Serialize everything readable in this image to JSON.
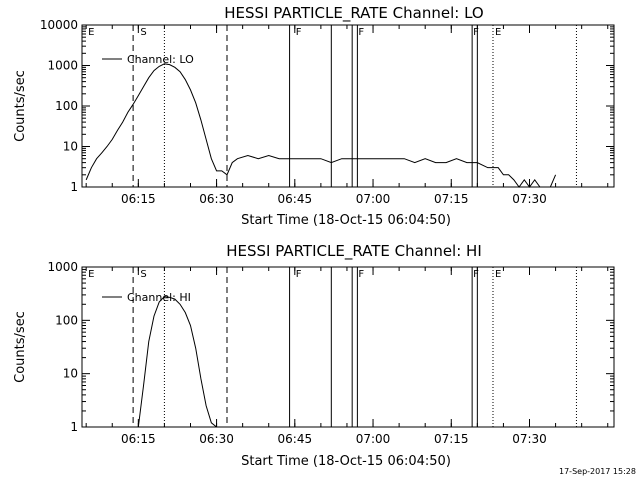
{
  "footer_timestamp": "17-Sep-2017 15:28",
  "chart_data": [
    {
      "type": "line",
      "title": "HESSI PARTICLE_RATE Channel: LO",
      "xlabel": "Start Time (18-Oct-15 06:04:50)",
      "ylabel": "Counts/sec",
      "yscale": "log",
      "ylim": [
        1,
        10000
      ],
      "xlim_minutes": [
        6.07,
        7.77
      ],
      "xticks": [
        "06:15",
        "06:30",
        "06:45",
        "07:00",
        "07:15",
        "07:30"
      ],
      "yticks": [
        "1",
        "10",
        "100",
        "1000",
        "10000"
      ],
      "legend": "Channel: LO",
      "legend_position": "top-left",
      "markers": [
        {
          "label": "E",
          "time": "06:05"
        },
        {
          "label": "S",
          "time": "06:15"
        },
        {
          "label": "F",
          "time": "06:45"
        },
        {
          "label": "F",
          "time": "06:57"
        },
        {
          "label": "F",
          "time": "07:19"
        },
        {
          "label": "E",
          "time": "07:23"
        }
      ],
      "series": [
        {
          "name": "Channel: LO",
          "x": [
            "06:05",
            "06:06",
            "06:07",
            "06:08",
            "06:09",
            "06:10",
            "06:11",
            "06:12",
            "06:13",
            "06:14",
            "06:15",
            "06:16",
            "06:17",
            "06:18",
            "06:19",
            "06:20",
            "06:21",
            "06:22",
            "06:23",
            "06:24",
            "06:25",
            "06:26",
            "06:27",
            "06:28",
            "06:29",
            "06:30",
            "06:31",
            "06:32",
            "06:33",
            "06:34",
            "06:36",
            "06:38",
            "06:40",
            "06:42",
            "06:44",
            "06:46",
            "06:48",
            "06:50",
            "06:52",
            "06:54",
            "06:56",
            "06:58",
            "07:00",
            "07:02",
            "07:04",
            "07:06",
            "07:08",
            "07:10",
            "07:12",
            "07:14",
            "07:16",
            "07:18",
            "07:20",
            "07:22",
            "07:24",
            "07:25",
            "07:26",
            "07:27",
            "07:28",
            "07:29",
            "07:30",
            "07:31",
            "07:32",
            "07:33",
            "07:34",
            "07:35"
          ],
          "values": [
            1.5,
            3,
            5,
            7,
            10,
            15,
            25,
            40,
            70,
            110,
            180,
            300,
            500,
            750,
            950,
            1100,
            1050,
            900,
            700,
            450,
            250,
            120,
            45,
            15,
            5,
            2.5,
            2.5,
            2,
            4,
            5,
            6,
            5,
            6,
            5,
            5,
            5,
            5,
            5,
            4,
            5,
            5,
            5,
            5,
            5,
            5,
            5,
            4,
            5,
            4,
            4,
            5,
            4,
            4,
            3,
            3,
            2,
            2,
            1.5,
            1,
            1.5,
            1,
            1.5,
            1,
            1,
            1,
            2
          ]
        }
      ]
    },
    {
      "type": "line",
      "title": "HESSI PARTICLE_RATE Channel: HI",
      "xlabel": "Start Time (18-Oct-15 06:04:50)",
      "ylabel": "Counts/sec",
      "yscale": "log",
      "ylim": [
        1,
        1000
      ],
      "xlim_minutes": [
        6.07,
        7.77
      ],
      "xticks": [
        "06:15",
        "06:30",
        "06:45",
        "07:00",
        "07:15",
        "07:30"
      ],
      "yticks": [
        "1",
        "10",
        "100",
        "1000"
      ],
      "legend": "Channel: HI",
      "legend_position": "top-left",
      "markers": [
        {
          "label": "E",
          "time": "06:05"
        },
        {
          "label": "S",
          "time": "06:15"
        },
        {
          "label": "F",
          "time": "06:45"
        },
        {
          "label": "F",
          "time": "06:57"
        },
        {
          "label": "F",
          "time": "07:19"
        },
        {
          "label": "E",
          "time": "07:23"
        }
      ],
      "series": [
        {
          "name": "Channel: HI",
          "x": [
            "06:15",
            "06:16",
            "06:17",
            "06:18",
            "06:19",
            "06:20",
            "06:21",
            "06:22",
            "06:23",
            "06:24",
            "06:25",
            "06:26",
            "06:27",
            "06:28",
            "06:29",
            "06:30"
          ],
          "values": [
            1,
            6,
            40,
            120,
            220,
            280,
            270,
            250,
            200,
            140,
            80,
            30,
            8,
            2.5,
            1.2,
            1
          ]
        }
      ]
    }
  ]
}
